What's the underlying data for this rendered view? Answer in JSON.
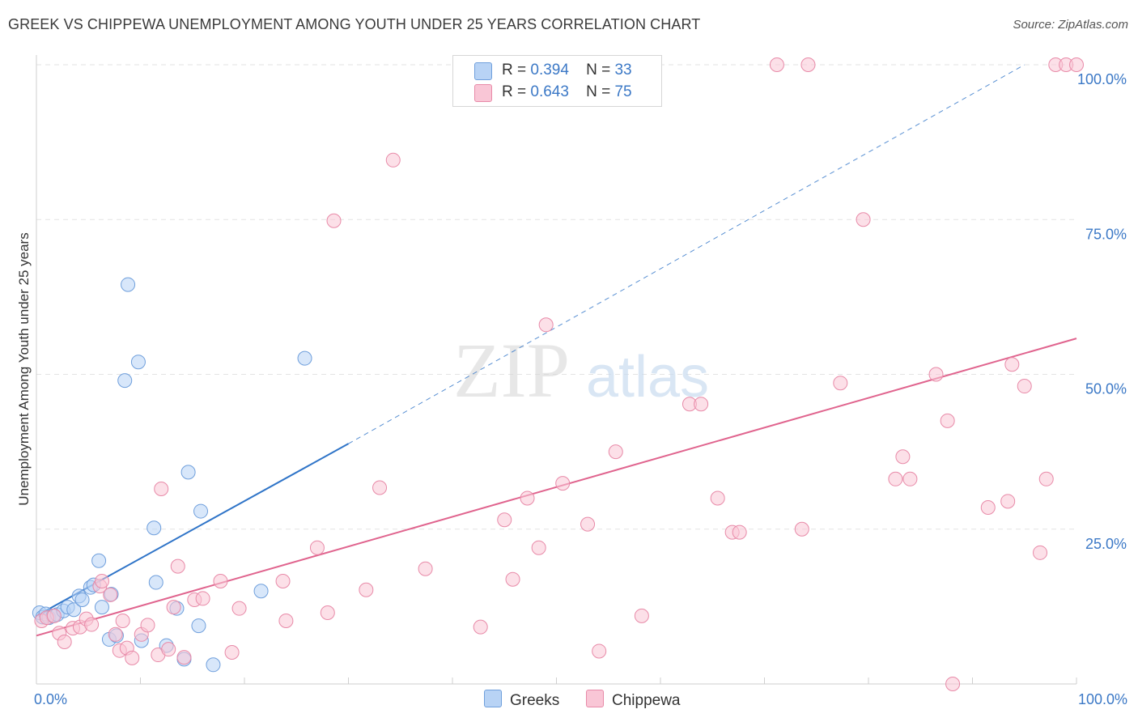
{
  "title": "GREEK VS CHIPPEWA UNEMPLOYMENT AMONG YOUTH UNDER 25 YEARS CORRELATION CHART",
  "source": "Source: ZipAtlas.com",
  "watermark": {
    "zip": "ZIP",
    "atlas": "atlas"
  },
  "legend": {
    "rows": [
      {
        "r_label": "R =",
        "r_value": "0.394",
        "n_label": "N =",
        "n_value": "33"
      },
      {
        "r_label": "R =",
        "r_value": "0.643",
        "n_label": "N =",
        "n_value": "75"
      }
    ]
  },
  "bottom_legend": {
    "greeks": "Greeks",
    "chippewa": "Chippewa"
  },
  "colors": {
    "greeks_fill": "#b8d3f5",
    "greeks_stroke": "#6f9fdc",
    "greeks_line": "#2f74c8",
    "chippewa_fill": "#f9c6d6",
    "chippewa_stroke": "#e88aa8",
    "chippewa_line": "#e0648e",
    "tick_label": "#3b78c6",
    "grid": "#e3e3e3"
  },
  "chart_data": {
    "type": "scatter",
    "title": "GREEK VS CHIPPEWA UNEMPLOYMENT AMONG YOUTH UNDER 25 YEARS CORRELATION CHART",
    "xlabel": "",
    "ylabel": "Unemployment Among Youth under 25 years",
    "xlim": [
      0,
      100
    ],
    "ylim": [
      0,
      102
    ],
    "x_tick_labels": [
      "0.0%",
      "100.0%"
    ],
    "y_ticks": [
      25,
      50,
      75,
      100
    ],
    "y_tick_labels": [
      "25.0%",
      "50.0%",
      "75.0%",
      "100.0%"
    ],
    "grid": true,
    "series": [
      {
        "name": "Greeks",
        "r": 0.394,
        "n": 33,
        "points": [
          [
            0.3,
            11.5
          ],
          [
            0.6,
            10.8
          ],
          [
            0.9,
            11.3
          ],
          [
            1.2,
            10.7
          ],
          [
            1.6,
            11.0
          ],
          [
            2.0,
            11.2
          ],
          [
            2.6,
            11.8
          ],
          [
            3.0,
            12.4
          ],
          [
            3.6,
            12.0
          ],
          [
            4.1,
            14.2
          ],
          [
            4.4,
            13.6
          ],
          [
            5.2,
            15.6
          ],
          [
            5.5,
            16.0
          ],
          [
            6.0,
            19.9
          ],
          [
            6.3,
            12.4
          ],
          [
            7.2,
            14.5
          ],
          [
            7.0,
            7.2
          ],
          [
            7.7,
            7.8
          ],
          [
            8.5,
            49.0
          ],
          [
            8.8,
            64.5
          ],
          [
            9.8,
            52.0
          ],
          [
            10.1,
            7.0
          ],
          [
            11.3,
            25.2
          ],
          [
            11.5,
            16.4
          ],
          [
            12.5,
            6.2
          ],
          [
            13.5,
            12.2
          ],
          [
            14.2,
            4.0
          ],
          [
            14.6,
            34.2
          ],
          [
            15.6,
            9.4
          ],
          [
            15.8,
            27.9
          ],
          [
            17.0,
            3.1
          ],
          [
            21.6,
            15.0
          ],
          [
            25.8,
            52.6
          ]
        ],
        "trend": {
          "x_start": 0,
          "y_start": 11.0,
          "x_solid_end": 30,
          "y_solid_end": 38.8,
          "x_dash_end": 95,
          "y_dash_end": 100
        }
      },
      {
        "name": "Chippewa",
        "r": 0.643,
        "n": 75,
        "points": [
          [
            0.5,
            10.2
          ],
          [
            1.0,
            10.7
          ],
          [
            1.7,
            11.0
          ],
          [
            2.2,
            8.2
          ],
          [
            2.7,
            6.8
          ],
          [
            3.5,
            9.0
          ],
          [
            4.2,
            9.2
          ],
          [
            4.8,
            10.5
          ],
          [
            5.3,
            9.6
          ],
          [
            6.1,
            15.8
          ],
          [
            6.3,
            16.6
          ],
          [
            7.1,
            14.4
          ],
          [
            7.6,
            8.0
          ],
          [
            8.0,
            5.4
          ],
          [
            8.3,
            10.2
          ],
          [
            8.7,
            5.8
          ],
          [
            9.2,
            4.2
          ],
          [
            10.1,
            8.0
          ],
          [
            10.7,
            9.5
          ],
          [
            11.7,
            4.7
          ],
          [
            12.0,
            31.5
          ],
          [
            12.7,
            5.6
          ],
          [
            13.2,
            12.4
          ],
          [
            13.6,
            19.0
          ],
          [
            14.2,
            4.3
          ],
          [
            15.2,
            13.6
          ],
          [
            16.0,
            13.8
          ],
          [
            17.7,
            16.6
          ],
          [
            18.8,
            5.1
          ],
          [
            19.5,
            12.2
          ],
          [
            23.7,
            16.6
          ],
          [
            24.0,
            10.2
          ],
          [
            27.0,
            22.0
          ],
          [
            28.0,
            11.5
          ],
          [
            28.6,
            74.8
          ],
          [
            31.7,
            15.2
          ],
          [
            33.0,
            31.7
          ],
          [
            34.3,
            84.6
          ],
          [
            37.4,
            18.6
          ],
          [
            42.7,
            9.2
          ],
          [
            45.0,
            26.5
          ],
          [
            45.8,
            16.9
          ],
          [
            47.2,
            30.0
          ],
          [
            48.3,
            22.0
          ],
          [
            49.0,
            58.0
          ],
          [
            50.6,
            32.4
          ],
          [
            53.0,
            25.8
          ],
          [
            54.1,
            5.3
          ],
          [
            55.7,
            37.5
          ],
          [
            58.2,
            11.0
          ],
          [
            62.8,
            45.2
          ],
          [
            63.9,
            45.2
          ],
          [
            65.5,
            30.0
          ],
          [
            66.9,
            24.5
          ],
          [
            67.6,
            24.5
          ],
          [
            71.2,
            100.0
          ],
          [
            73.6,
            25.0
          ],
          [
            74.2,
            100.0
          ],
          [
            77.3,
            48.6
          ],
          [
            79.5,
            75.0
          ],
          [
            82.6,
            33.1
          ],
          [
            83.3,
            36.7
          ],
          [
            84.0,
            33.1
          ],
          [
            86.5,
            50.0
          ],
          [
            87.6,
            42.5
          ],
          [
            88.1,
            0.0
          ],
          [
            91.5,
            28.5
          ],
          [
            93.4,
            29.5
          ],
          [
            93.8,
            51.6
          ],
          [
            95.0,
            48.1
          ],
          [
            96.5,
            21.2
          ],
          [
            97.1,
            33.1
          ],
          [
            98.0,
            100.0
          ],
          [
            99.0,
            100.0
          ],
          [
            100.0,
            100.0
          ]
        ],
        "trend": {
          "x_start": 0,
          "y_start": 7.8,
          "x_end": 100,
          "y_end": 55.8
        }
      }
    ]
  }
}
